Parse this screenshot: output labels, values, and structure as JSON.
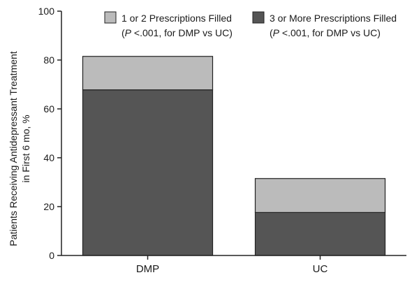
{
  "chart_data": {
    "type": "bar",
    "stacked": true,
    "categories": [
      "DMP",
      "UC"
    ],
    "series": [
      {
        "name": "3 or More Prescriptions Filled",
        "values": [
          67.8,
          17.6
        ],
        "color": "#555555"
      },
      {
        "name": "1 or 2 Prescriptions Filled",
        "values": [
          13.7,
          13.9
        ],
        "color": "#bbbbbb"
      }
    ],
    "legend": [
      {
        "line1": "1 or 2 Prescriptions Filled",
        "line2_italic": "P",
        "line2_rest": "<.001, for DMP vs UC)",
        "line2_open": "(",
        "color": "#bbbbbb"
      },
      {
        "line1": "3 or More Prescriptions Filled",
        "line2_italic": "P",
        "line2_rest": "<.001, for DMP vs UC)",
        "line2_open": "(",
        "color": "#555555"
      }
    ],
    "ylabel_line1": "Patients Receiving Antidepressant Treatment",
    "ylabel_line2": "in First 6 mo, %",
    "xlabel": "",
    "ylim": [
      0,
      100
    ],
    "yticks": [
      0,
      20,
      40,
      60,
      80,
      100
    ],
    "grid": false,
    "legend_placement": "top-right"
  }
}
